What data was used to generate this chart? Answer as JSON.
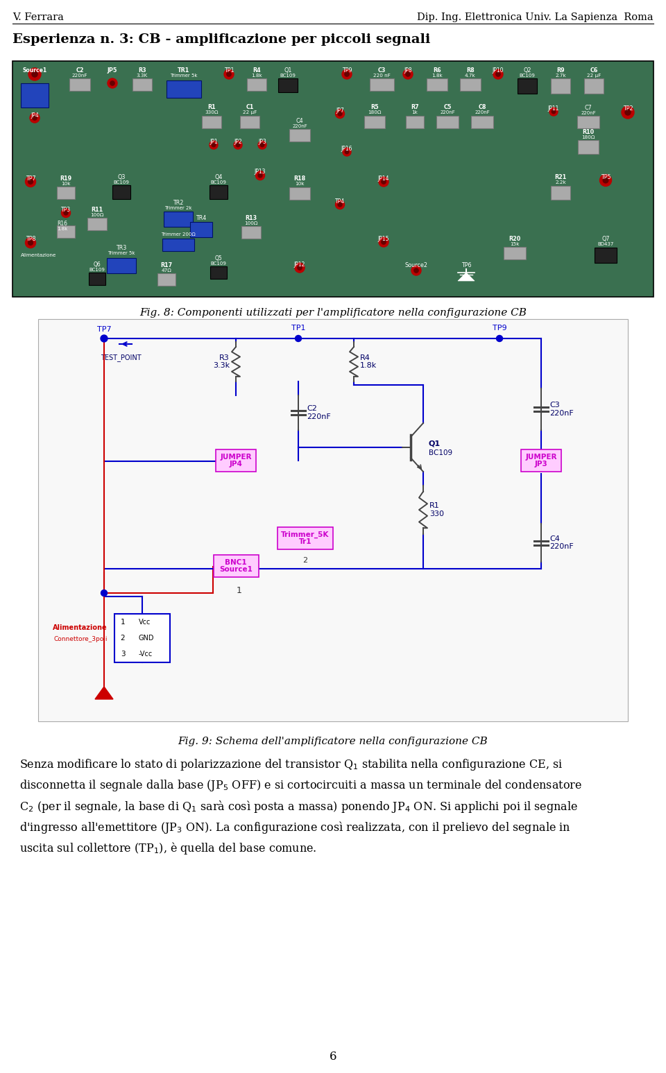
{
  "header_left": "V. Ferrara",
  "header_right": "Dip. Ing. Elettronica Univ. La Sapienza  Roma",
  "title": "Esperienza n. 3: CB - amplificazione per piccoli segnali",
  "fig8_caption": "Fig. 8: Componenti utilizzati per l'amplificatore nella configurazione CB",
  "fig9_caption": "Fig. 9: Schema dell'amplificatore nella configurazione CB",
  "body_line1": "Senza modificare lo stato di polarizzazione del transistor Q$_1$ stabilita nella configurazione CE, si",
  "body_line2": "disconnetta il segnale dalla base (JP$_5$ OFF) e si cortocircuiti a massa un terminale del condensatore",
  "body_line3": "C$_2$ (per il segnale, la base di Q$_1$ sarà così posta a massa) ponendo JP$_4$ ON. Si applichi poi il segnale",
  "body_line4": "d'ingresso all'emettitore (JP$_3$ ON). La configurazione così realizzata, con il prelievo del segnale in",
  "body_line5": "uscita sul collettore (TP$_1$), è quella del base comune.",
  "page_number": "6",
  "bg_color": "#ffffff",
  "text_color": "#000000",
  "pcb_bg": "#3a7050",
  "wire_blue": "#0000cc",
  "wire_red": "#cc0000",
  "jumper_color": "#cc00cc",
  "comp_dark": "#222222",
  "comp_gray": "#aaaaaa",
  "comp_blue": "#2244bb"
}
